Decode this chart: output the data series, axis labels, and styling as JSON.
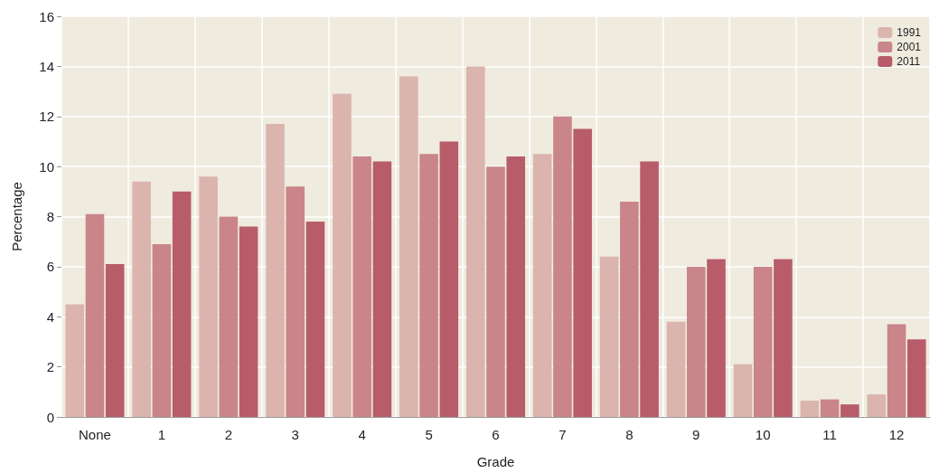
{
  "chart_data": {
    "type": "bar",
    "xlabel": "Grade",
    "ylabel": "Percentage",
    "categories": [
      "None",
      "1",
      "2",
      "3",
      "4",
      "5",
      "6",
      "7",
      "8",
      "9",
      "10",
      "11",
      "12"
    ],
    "series": [
      {
        "name": "1991",
        "color": "#dbb4ae",
        "values": [
          4.5,
          9.4,
          9.6,
          11.7,
          12.9,
          13.6,
          14.0,
          10.5,
          6.4,
          3.8,
          2.1,
          0.65,
          0.9
        ]
      },
      {
        "name": "2001",
        "color": "#c9858a",
        "values": [
          8.1,
          6.9,
          8.0,
          9.2,
          10.4,
          10.5,
          10.0,
          12.0,
          8.6,
          6.0,
          6.0,
          0.7,
          3.7
        ]
      },
      {
        "name": "2011",
        "color": "#b85c6a",
        "values": [
          6.1,
          9.0,
          7.6,
          7.8,
          10.2,
          11.0,
          10.4,
          11.5,
          10.2,
          6.3,
          6.3,
          0.5,
          3.1
        ]
      }
    ],
    "ylim": [
      0,
      16
    ],
    "yticks": [
      0,
      2,
      4,
      6,
      8,
      10,
      12,
      14,
      16
    ],
    "grid": true,
    "legend": "top right"
  }
}
